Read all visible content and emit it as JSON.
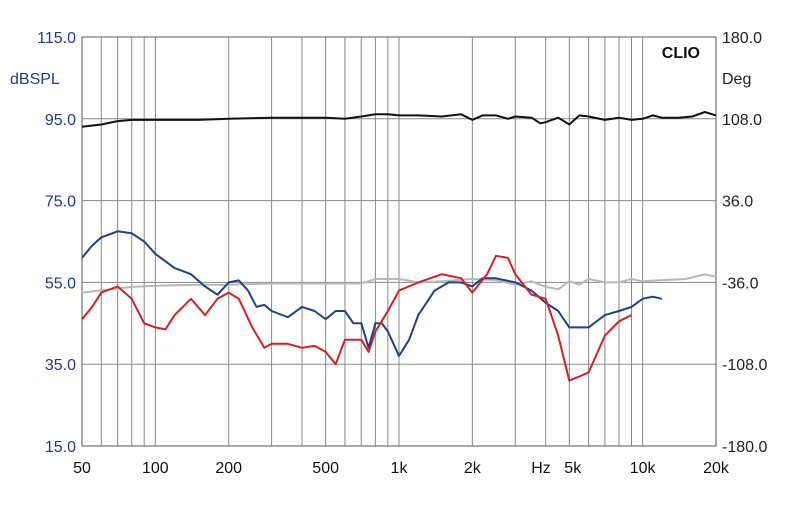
{
  "chart_data": {
    "type": "line",
    "brand": "CLIO",
    "x_scale": "log",
    "x_range": [
      50,
      20000
    ],
    "x_unit": "Hz",
    "x_ticks": [
      {
        "value": 50,
        "label": "50"
      },
      {
        "value": 100,
        "label": "100"
      },
      {
        "value": 200,
        "label": "200"
      },
      {
        "value": 500,
        "label": "500"
      },
      {
        "value": 1000,
        "label": "1k"
      },
      {
        "value": 2000,
        "label": "2k"
      },
      {
        "value": 5000,
        "label": "5k"
      },
      {
        "value": 10000,
        "label": "10k"
      },
      {
        "value": 20000,
        "label": "20k"
      }
    ],
    "y_left": {
      "label": "dBSPL",
      "range": [
        15,
        115
      ],
      "ticks": [
        "115.0",
        "95.0",
        "75.0",
        "55.0",
        "35.0",
        "15.0"
      ]
    },
    "y_right": {
      "label": "Deg",
      "range": [
        -180,
        180
      ],
      "ticks": [
        "180.0",
        "108.0",
        "36.0",
        "-36.0",
        "-108.0",
        "-180.0"
      ]
    },
    "grid": true,
    "colors": {
      "blue": "#1f3f8f",
      "red": "#d42020",
      "black": "#111111",
      "gray": "#b8b8b8",
      "grid": "#888888",
      "left_axis": "#1f3a8a"
    },
    "series": [
      {
        "color": "gray",
        "axis": "right",
        "points": [
          [
            50,
            -45
          ],
          [
            60,
            -43
          ],
          [
            80,
            -40
          ],
          [
            100,
            -39
          ],
          [
            150,
            -38
          ],
          [
            200,
            -38
          ],
          [
            300,
            -37
          ],
          [
            500,
            -37
          ],
          [
            700,
            -37
          ],
          [
            800,
            -33
          ],
          [
            1000,
            -33
          ],
          [
            1200,
            -36
          ],
          [
            1500,
            -35
          ],
          [
            2000,
            -33
          ],
          [
            2500,
            -34
          ],
          [
            3000,
            -38
          ],
          [
            3500,
            -35
          ],
          [
            4000,
            -40
          ],
          [
            4500,
            -42
          ],
          [
            5000,
            -35
          ],
          [
            5500,
            -38
          ],
          [
            6000,
            -33
          ],
          [
            7000,
            -36
          ],
          [
            8000,
            -36
          ],
          [
            9000,
            -33
          ],
          [
            10000,
            -35
          ],
          [
            12000,
            -34
          ],
          [
            15000,
            -33
          ],
          [
            18000,
            -29
          ],
          [
            20000,
            -31
          ]
        ]
      },
      {
        "color": "black",
        "axis": "right",
        "points": [
          [
            50,
            101
          ],
          [
            60,
            103
          ],
          [
            70,
            106
          ],
          [
            80,
            107
          ],
          [
            100,
            107
          ],
          [
            150,
            107
          ],
          [
            200,
            108
          ],
          [
            300,
            109
          ],
          [
            500,
            109
          ],
          [
            600,
            108
          ],
          [
            700,
            110
          ],
          [
            800,
            112
          ],
          [
            900,
            112
          ],
          [
            1000,
            111
          ],
          [
            1200,
            111
          ],
          [
            1500,
            110
          ],
          [
            1800,
            112
          ],
          [
            2000,
            107
          ],
          [
            2200,
            111
          ],
          [
            2500,
            111
          ],
          [
            2800,
            108
          ],
          [
            3000,
            110
          ],
          [
            3500,
            109
          ],
          [
            3800,
            104
          ],
          [
            4000,
            105
          ],
          [
            4500,
            109
          ],
          [
            5000,
            103
          ],
          [
            5500,
            111
          ],
          [
            6000,
            110
          ],
          [
            7000,
            107
          ],
          [
            8000,
            109
          ],
          [
            9000,
            107
          ],
          [
            10000,
            108
          ],
          [
            11000,
            111
          ],
          [
            12000,
            109
          ],
          [
            14000,
            109
          ],
          [
            16000,
            110
          ],
          [
            18000,
            114
          ],
          [
            20000,
            111
          ]
        ]
      },
      {
        "color": "blue",
        "axis": "left",
        "points": [
          [
            50,
            61
          ],
          [
            55,
            64
          ],
          [
            60,
            66
          ],
          [
            70,
            67.5
          ],
          [
            80,
            67
          ],
          [
            90,
            65
          ],
          [
            100,
            62
          ],
          [
            120,
            58.5
          ],
          [
            140,
            57
          ],
          [
            160,
            54
          ],
          [
            180,
            52
          ],
          [
            200,
            55
          ],
          [
            220,
            55.5
          ],
          [
            240,
            53
          ],
          [
            260,
            49
          ],
          [
            280,
            49.5
          ],
          [
            300,
            48
          ],
          [
            350,
            46.5
          ],
          [
            400,
            49
          ],
          [
            450,
            48
          ],
          [
            500,
            46
          ],
          [
            550,
            48
          ],
          [
            600,
            48
          ],
          [
            650,
            45
          ],
          [
            700,
            45
          ],
          [
            750,
            39
          ],
          [
            800,
            45
          ],
          [
            850,
            45
          ],
          [
            900,
            43
          ],
          [
            1000,
            37
          ],
          [
            1100,
            41
          ],
          [
            1200,
            47
          ],
          [
            1400,
            53
          ],
          [
            1600,
            55
          ],
          [
            1800,
            55
          ],
          [
            2000,
            54
          ],
          [
            2200,
            56
          ],
          [
            2500,
            56
          ],
          [
            3000,
            55
          ],
          [
            3500,
            53
          ],
          [
            4000,
            50
          ],
          [
            4500,
            48
          ],
          [
            5000,
            44
          ],
          [
            5500,
            44
          ],
          [
            6000,
            44
          ],
          [
            7000,
            47
          ],
          [
            8000,
            48
          ],
          [
            9000,
            49
          ],
          [
            10000,
            51
          ],
          [
            11000,
            51.5
          ],
          [
            12000,
            51
          ]
        ]
      },
      {
        "color": "red",
        "axis": "left",
        "points": [
          [
            50,
            46
          ],
          [
            55,
            49
          ],
          [
            60,
            52.5
          ],
          [
            70,
            54
          ],
          [
            80,
            51
          ],
          [
            90,
            45
          ],
          [
            100,
            44
          ],
          [
            110,
            43.5
          ],
          [
            120,
            47
          ],
          [
            140,
            51
          ],
          [
            160,
            47
          ],
          [
            180,
            51
          ],
          [
            200,
            52.5
          ],
          [
            220,
            51
          ],
          [
            250,
            44
          ],
          [
            280,
            39
          ],
          [
            300,
            40
          ],
          [
            350,
            40
          ],
          [
            400,
            39
          ],
          [
            450,
            39.5
          ],
          [
            500,
            38
          ],
          [
            550,
            35
          ],
          [
            600,
            41
          ],
          [
            650,
            41
          ],
          [
            700,
            41
          ],
          [
            750,
            38
          ],
          [
            800,
            43
          ],
          [
            900,
            48
          ],
          [
            1000,
            53
          ],
          [
            1200,
            55
          ],
          [
            1500,
            57
          ],
          [
            1800,
            56
          ],
          [
            2000,
            52.5
          ],
          [
            2300,
            57
          ],
          [
            2500,
            61.5
          ],
          [
            2800,
            61
          ],
          [
            3000,
            57
          ],
          [
            3500,
            52
          ],
          [
            4000,
            51
          ],
          [
            4500,
            42
          ],
          [
            5000,
            31
          ],
          [
            5500,
            32
          ],
          [
            6000,
            33
          ],
          [
            7000,
            42
          ],
          [
            8000,
            45.5
          ],
          [
            9000,
            47
          ]
        ]
      }
    ]
  }
}
